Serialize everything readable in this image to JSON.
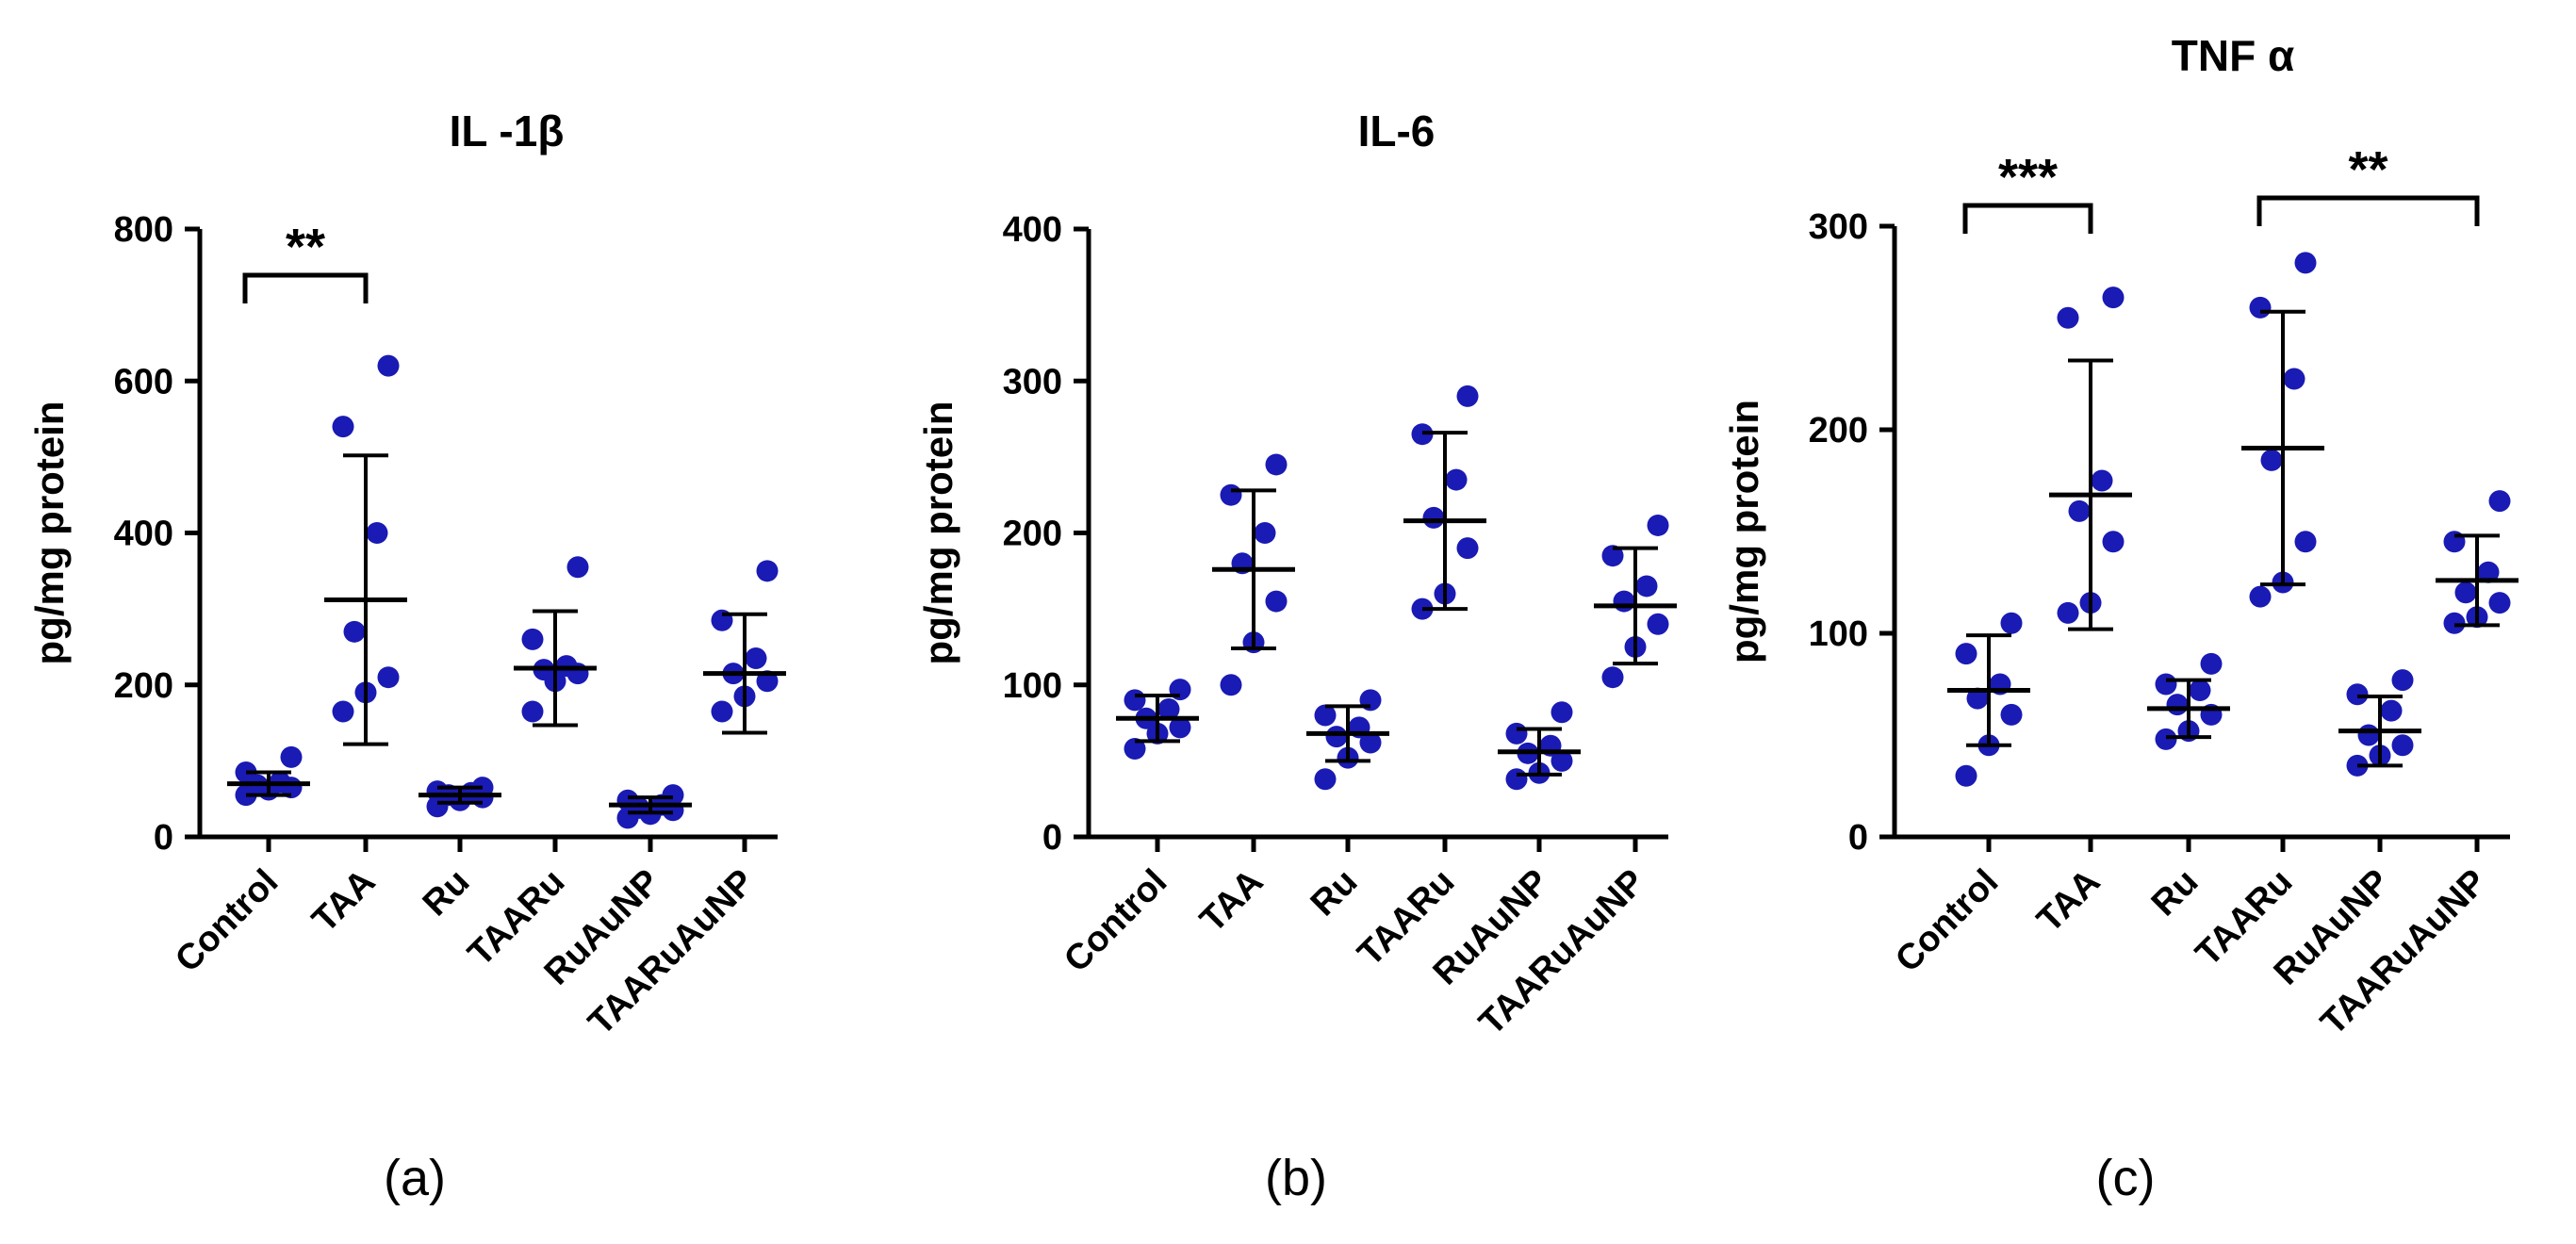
{
  "figure": {
    "marker_color": "#1a1ab4",
    "line_color": "#000000"
  },
  "chart_data": [
    {
      "type": "scatter",
      "panel_label": "(a)",
      "title": "IL -1β",
      "ylabel": "pg/mg protein",
      "ylim": [
        0,
        800
      ],
      "yticks": [
        "0",
        "200",
        "400",
        "600",
        "800"
      ],
      "categories": [
        "Control",
        "TAA",
        "Ru",
        "TAARu",
        "RuAuNP",
        "TAARuAuNP"
      ],
      "points": [
        [
          55,
          62,
          65,
          68,
          72,
          85,
          105
        ],
        [
          165,
          190,
          210,
          270,
          400,
          540,
          620
        ],
        [
          40,
          48,
          52,
          55,
          58,
          60,
          65
        ],
        [
          165,
          205,
          215,
          220,
          225,
          260,
          355
        ],
        [
          25,
          30,
          35,
          38,
          42,
          48,
          55
        ],
        [
          165,
          185,
          205,
          215,
          235,
          285,
          350
        ]
      ],
      "mean": [
        70,
        312,
        55,
        222,
        42,
        215
      ],
      "sd": [
        15,
        190,
        10,
        75,
        10,
        78
      ],
      "significance": [
        {
          "from": 0,
          "to": 1,
          "label": "**"
        }
      ],
      "grid": false
    },
    {
      "type": "scatter",
      "panel_label": "(b)",
      "title": "IL-6",
      "ylabel": "pg/mg protein",
      "ylim": [
        0,
        400
      ],
      "yticks": [
        "0",
        "100",
        "200",
        "300",
        "400"
      ],
      "categories": [
        "Control",
        "TAA",
        "Ru",
        "TAARu",
        "RuAuNP",
        "TAARuAuNP"
      ],
      "points": [
        [
          58,
          68,
          72,
          78,
          84,
          90,
          97
        ],
        [
          100,
          128,
          155,
          180,
          200,
          225,
          245
        ],
        [
          38,
          52,
          62,
          66,
          72,
          80,
          90
        ],
        [
          150,
          160,
          190,
          210,
          235,
          265,
          290
        ],
        [
          38,
          42,
          50,
          55,
          60,
          68,
          82
        ],
        [
          105,
          125,
          140,
          155,
          165,
          185,
          205
        ]
      ],
      "mean": [
        78,
        176,
        68,
        208,
        56,
        152
      ],
      "sd": [
        15,
        52,
        18,
        58,
        15,
        38
      ],
      "significance": [],
      "grid": false
    },
    {
      "type": "scatter",
      "panel_label": "(c)",
      "title": "TNF α",
      "ylabel": "pg/mg protein",
      "ylim": [
        0,
        300
      ],
      "yticks": [
        "0",
        "100",
        "200",
        "300"
      ],
      "categories": [
        "Control",
        "TAA",
        "Ru",
        "TAARu",
        "RuAuNP",
        "TAARuAuNP"
      ],
      "points": [
        [
          30,
          45,
          60,
          68,
          75,
          90,
          105
        ],
        [
          110,
          115,
          145,
          160,
          175,
          255,
          265
        ],
        [
          48,
          52,
          60,
          65,
          72,
          75,
          85
        ],
        [
          118,
          125,
          145,
          185,
          225,
          260,
          282
        ],
        [
          35,
          40,
          45,
          50,
          62,
          70,
          77
        ],
        [
          105,
          108,
          115,
          120,
          130,
          145,
          165
        ]
      ],
      "mean": [
        72,
        168,
        63,
        191,
        52,
        126
      ],
      "sd": [
        27,
        66,
        14,
        67,
        17,
        22
      ],
      "significance": [
        {
          "from": 0,
          "to": 1,
          "label": "***"
        },
        {
          "from": 3,
          "to": 5,
          "label": "**"
        }
      ],
      "grid": false
    }
  ]
}
